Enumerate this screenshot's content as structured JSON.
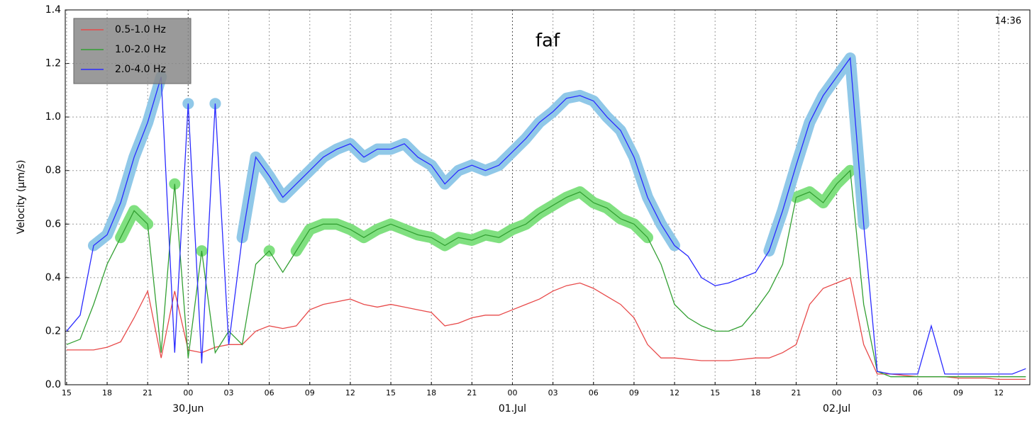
{
  "chart_data": {
    "type": "line",
    "title": "faf",
    "annotation": "14:36",
    "ylabel": "Velocity (μm/s)",
    "x": [
      -9,
      -8,
      -7,
      -6,
      -5,
      -4,
      -3,
      -2,
      -1,
      0,
      1,
      2,
      3,
      4,
      5,
      6,
      7,
      8,
      9,
      10,
      11,
      12,
      13,
      14,
      15,
      16,
      17,
      18,
      19,
      20,
      21,
      22,
      23,
      24,
      25,
      26,
      27,
      28,
      29,
      30,
      31,
      32,
      33,
      34,
      35,
      36,
      37,
      38,
      39,
      40,
      41,
      42,
      43,
      44,
      45,
      46,
      47,
      48,
      49,
      50,
      51,
      52,
      53,
      54,
      55,
      56,
      57,
      58,
      59,
      60,
      61,
      62
    ],
    "series": [
      {
        "name": "0.5-1.0 Hz",
        "color": "#e84a4a",
        "values": [
          0.13,
          0.13,
          0.13,
          0.14,
          0.16,
          0.25,
          0.35,
          0.1,
          0.35,
          0.13,
          0.12,
          0.14,
          0.15,
          0.15,
          0.2,
          0.22,
          0.21,
          0.22,
          0.28,
          0.3,
          0.31,
          0.32,
          0.3,
          0.29,
          0.3,
          0.29,
          0.28,
          0.27,
          0.22,
          0.23,
          0.25,
          0.26,
          0.26,
          0.28,
          0.3,
          0.32,
          0.35,
          0.37,
          0.38,
          0.36,
          0.33,
          0.3,
          0.25,
          0.15,
          0.1,
          0.1,
          0.095,
          0.09,
          0.09,
          0.09,
          0.095,
          0.1,
          0.1,
          0.12,
          0.15,
          0.3,
          0.36,
          0.38,
          0.4,
          0.15,
          0.04,
          0.04,
          0.035,
          0.03,
          0.03,
          0.03,
          0.025,
          0.025,
          0.025,
          0.02,
          0.02,
          0.02
        ]
      },
      {
        "name": "1.0-2.0 Hz",
        "color": "#33a033",
        "highlight_color": "#80e080",
        "highlight_threshold": 0.5,
        "values": [
          0.15,
          0.17,
          0.3,
          0.45,
          0.55,
          0.65,
          0.6,
          0.12,
          0.75,
          0.1,
          0.5,
          0.12,
          0.2,
          0.15,
          0.45,
          0.5,
          0.42,
          0.5,
          0.58,
          0.6,
          0.6,
          0.58,
          0.55,
          0.58,
          0.6,
          0.58,
          0.56,
          0.55,
          0.52,
          0.55,
          0.54,
          0.56,
          0.55,
          0.58,
          0.6,
          0.64,
          0.67,
          0.7,
          0.72,
          0.68,
          0.66,
          0.62,
          0.6,
          0.55,
          0.45,
          0.3,
          0.25,
          0.22,
          0.2,
          0.2,
          0.22,
          0.28,
          0.35,
          0.45,
          0.7,
          0.72,
          0.68,
          0.75,
          0.8,
          0.3,
          0.05,
          0.03,
          0.03,
          0.03,
          0.03,
          0.03,
          0.03,
          0.03,
          0.03,
          0.03,
          0.03,
          0.03
        ]
      },
      {
        "name": "2.0-4.0 Hz",
        "color": "#2b2bff",
        "highlight_color": "#90c8e8",
        "highlight_threshold": 0.5,
        "values": [
          0.2,
          0.26,
          0.52,
          0.56,
          0.68,
          0.85,
          0.98,
          1.15,
          0.12,
          1.05,
          0.08,
          1.05,
          0.15,
          0.55,
          0.85,
          0.78,
          0.7,
          0.75,
          0.8,
          0.85,
          0.88,
          0.9,
          0.85,
          0.88,
          0.88,
          0.9,
          0.85,
          0.82,
          0.75,
          0.8,
          0.82,
          0.8,
          0.82,
          0.87,
          0.92,
          0.98,
          1.02,
          1.07,
          1.08,
          1.06,
          1.0,
          0.95,
          0.85,
          0.7,
          0.6,
          0.52,
          0.48,
          0.4,
          0.37,
          0.38,
          0.4,
          0.42,
          0.5,
          0.65,
          0.82,
          0.98,
          1.08,
          1.15,
          1.22,
          0.6,
          0.05,
          0.04,
          0.04,
          0.04,
          0.22,
          0.04,
          0.04,
          0.04,
          0.04,
          0.04,
          0.04,
          0.06
        ]
      }
    ],
    "xlim": [
      -9.1,
      62.3
    ],
    "xticks": [
      {
        "value": -9,
        "label": "15"
      },
      {
        "value": -6,
        "label": "18"
      },
      {
        "value": -3,
        "label": "21"
      },
      {
        "value": 0,
        "label": "00"
      },
      {
        "value": 3,
        "label": "03"
      },
      {
        "value": 6,
        "label": "06"
      },
      {
        "value": 9,
        "label": "09"
      },
      {
        "value": 12,
        "label": "12"
      },
      {
        "value": 15,
        "label": "15"
      },
      {
        "value": 18,
        "label": "18"
      },
      {
        "value": 21,
        "label": "21"
      },
      {
        "value": 24,
        "label": "00"
      },
      {
        "value": 27,
        "label": "03"
      },
      {
        "value": 30,
        "label": "06"
      },
      {
        "value": 33,
        "label": "09"
      },
      {
        "value": 36,
        "label": "12"
      },
      {
        "value": 39,
        "label": "15"
      },
      {
        "value": 42,
        "label": "18"
      },
      {
        "value": 45,
        "label": "21"
      },
      {
        "value": 48,
        "label": "00"
      },
      {
        "value": 51,
        "label": "03"
      },
      {
        "value": 54,
        "label": "06"
      },
      {
        "value": 57,
        "label": "09"
      },
      {
        "value": 60,
        "label": "12"
      }
    ],
    "xticks_major": [
      {
        "value": 0,
        "label": "30.Jun"
      },
      {
        "value": 24,
        "label": "01.Jul"
      },
      {
        "value": 48,
        "label": "02.Jul"
      }
    ],
    "ylim": [
      0,
      1.4
    ],
    "yticks": [
      {
        "value": 0,
        "label": "0.0"
      },
      {
        "value": 0.2,
        "label": "0.2"
      },
      {
        "value": 0.4,
        "label": "0.4"
      },
      {
        "value": 0.6,
        "label": "0.6"
      },
      {
        "value": 0.8,
        "label": "0.8"
      },
      {
        "value": 1.0,
        "label": "1.0"
      },
      {
        "value": 1.2,
        "label": "1.2"
      },
      {
        "value": 1.4,
        "label": "1.4"
      }
    ],
    "grid": true,
    "legend": "upper left"
  }
}
